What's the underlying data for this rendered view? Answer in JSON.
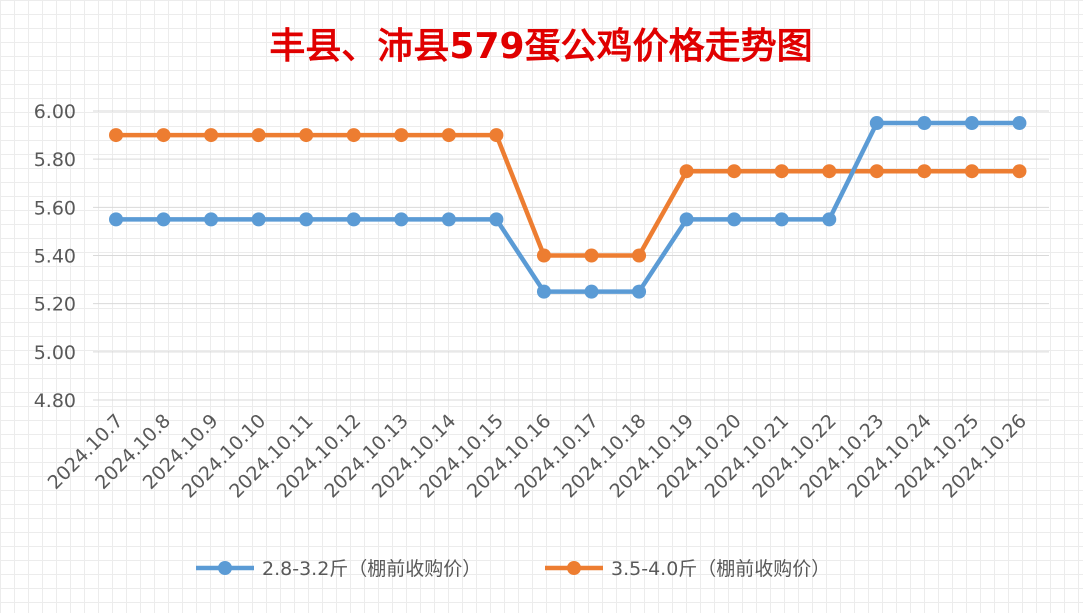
{
  "chart_data": {
    "type": "line",
    "title": "丰县、沛县579蛋公鸡价格走势图",
    "xlabel": "",
    "ylabel": "",
    "ylim": [
      4.8,
      6.0
    ],
    "y_ticks": [
      "6.00",
      "5.80",
      "5.60",
      "5.40",
      "5.20",
      "5.00",
      "4.80"
    ],
    "y_tick_values": [
      6.0,
      5.8,
      5.6,
      5.4,
      5.2,
      5.0,
      4.8
    ],
    "grid": true,
    "legend_position": "bottom",
    "categories": [
      "2024.10.7",
      "2024.10.8",
      "2024.10.9",
      "2024.10.10",
      "2024.10.11",
      "2024.10.12",
      "2024.10.13",
      "2024.10.14",
      "2024.10.15",
      "2024.10.16",
      "2024.10.17",
      "2024.10.18",
      "2024.10.19",
      "2024.10.20",
      "2024.10.21",
      "2024.10.22",
      "2024.10.23",
      "2024.10.24",
      "2024.10.25",
      "2024.10.26"
    ],
    "series": [
      {
        "name": "2.8-3.2斤（棚前收购价）",
        "color": "#5b9bd5",
        "values": [
          5.55,
          5.55,
          5.55,
          5.55,
          5.55,
          5.55,
          5.55,
          5.55,
          5.55,
          5.25,
          5.25,
          5.25,
          5.55,
          5.55,
          5.55,
          5.55,
          5.95,
          5.95,
          5.95,
          5.95
        ]
      },
      {
        "name": "3.5-4.0斤（棚前收购价）",
        "color": "#ed7d31",
        "values": [
          5.9,
          5.9,
          5.9,
          5.9,
          5.9,
          5.9,
          5.9,
          5.9,
          5.9,
          5.4,
          5.4,
          5.4,
          5.75,
          5.75,
          5.75,
          5.75,
          5.75,
          5.75,
          5.75,
          5.75
        ]
      }
    ]
  }
}
